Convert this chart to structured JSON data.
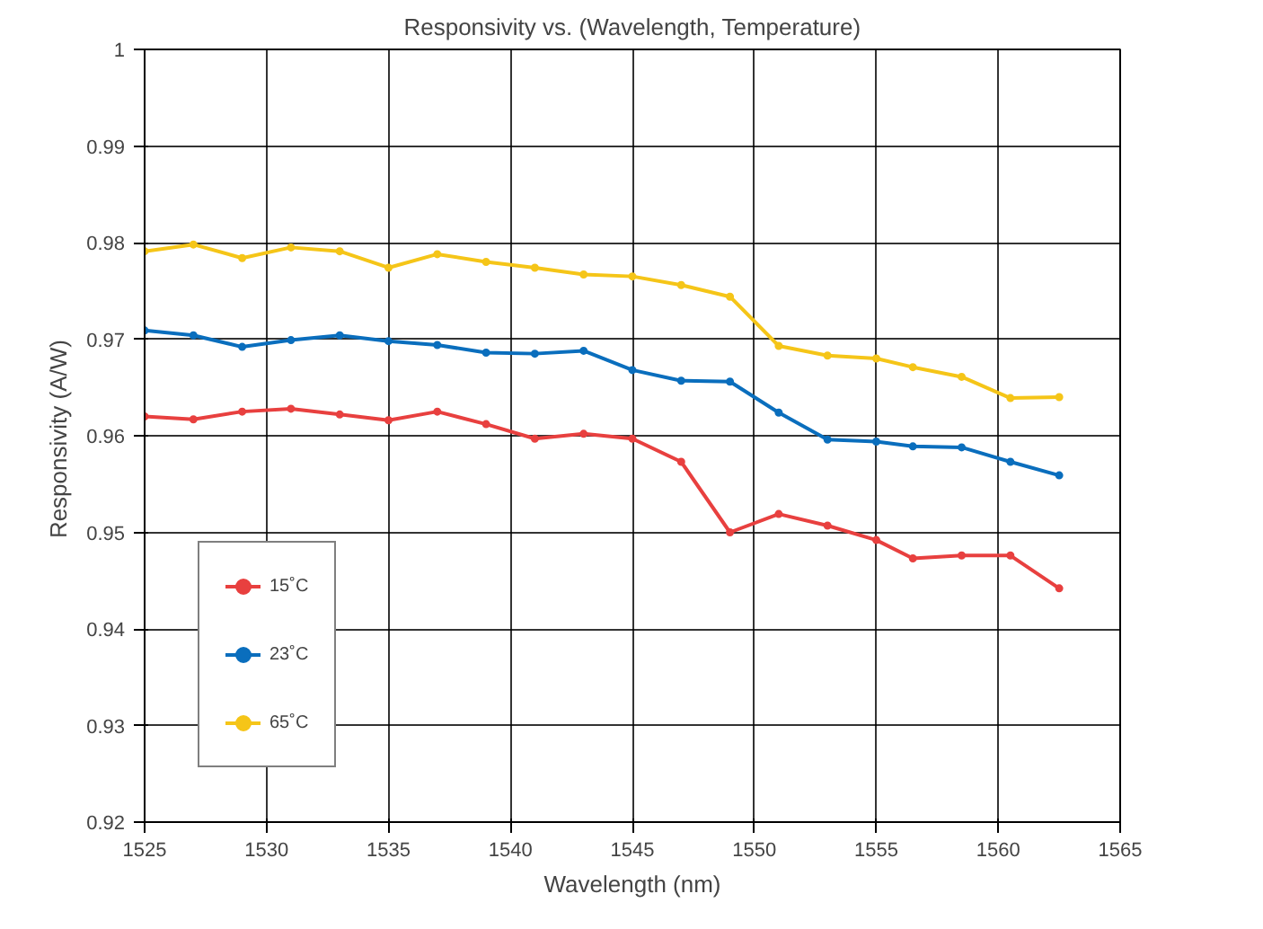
{
  "chart_data": {
    "type": "line",
    "title": "Responsivity vs. (Wavelength, Temperature)",
    "xlabel": "Wavelength (nm)",
    "ylabel": "Responsivity  (A/W)",
    "x": [
      1525,
      1527,
      1529,
      1531,
      1533,
      1535,
      1537,
      1539,
      1541,
      1543,
      1545,
      1547,
      1549,
      1551,
      1553,
      1555,
      1556.5,
      1558.5,
      1560.5,
      1562.5
    ],
    "series": [
      {
        "name": "15˚C",
        "color": "#e8403f",
        "values": [
          0.962,
          0.9617,
          0.9625,
          0.9628,
          0.9622,
          0.9616,
          0.9625,
          0.9612,
          0.9597,
          0.9602,
          0.9597,
          0.9573,
          0.95,
          0.9519,
          0.9507,
          0.9492,
          0.9473,
          0.9476,
          0.9476,
          0.9442
        ]
      },
      {
        "name": "23˚C",
        "color": "#0a6ebd",
        "values": [
          0.9709,
          0.9704,
          0.9692,
          0.9699,
          0.9704,
          0.9698,
          0.9694,
          0.9686,
          0.9685,
          0.9688,
          0.9668,
          0.9657,
          0.9656,
          0.9624,
          0.9596,
          0.9594,
          0.9589,
          0.9588,
          0.9573,
          0.9559
        ]
      },
      {
        "name": "65˚C",
        "color": "#f5c518",
        "values": [
          0.9791,
          0.9798,
          0.9784,
          0.9795,
          0.9791,
          0.9774,
          0.9788,
          0.978,
          0.9774,
          0.9767,
          0.9765,
          0.9756,
          0.9744,
          0.9693,
          0.9683,
          0.968,
          0.9671,
          0.9661,
          0.9639,
          0.964
        ]
      }
    ],
    "xlim": [
      1525,
      1565
    ],
    "xticks": [
      1525,
      1530,
      1535,
      1540,
      1545,
      1550,
      1555,
      1560,
      1565
    ],
    "ylim": [
      0.92,
      1
    ],
    "yticks": [
      0.92,
      0.93,
      0.94,
      0.95,
      0.96,
      0.97,
      0.98,
      0.99,
      1
    ],
    "grid": true,
    "legend": "bottom left",
    "marker": "circle",
    "line_style": "solid"
  }
}
